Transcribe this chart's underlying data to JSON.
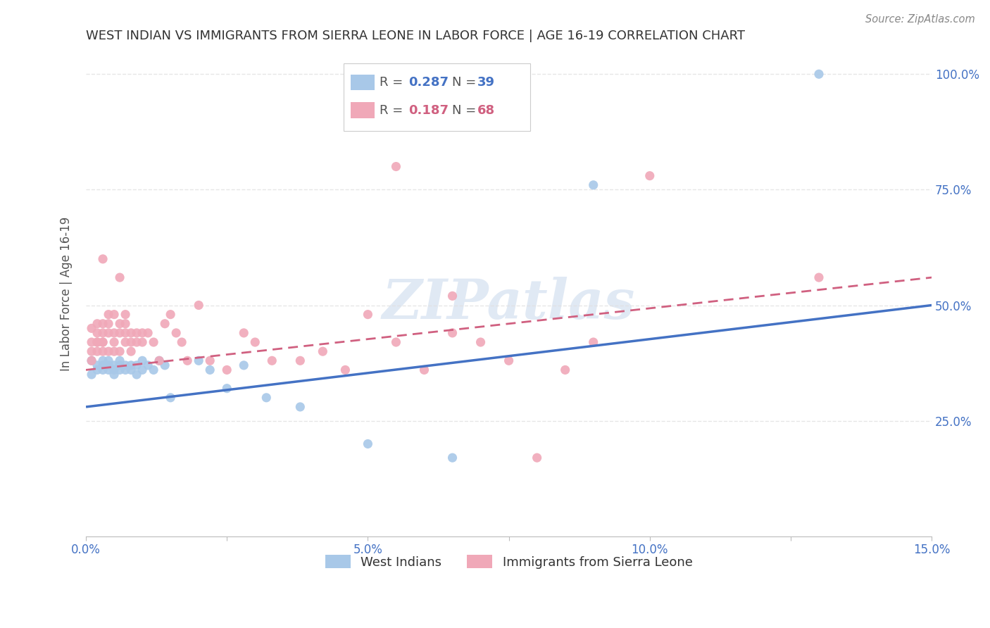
{
  "title": "WEST INDIAN VS IMMIGRANTS FROM SIERRA LEONE IN LABOR FORCE | AGE 16-19 CORRELATION CHART",
  "source": "Source: ZipAtlas.com",
  "ylabel": "In Labor Force | Age 16-19",
  "xlim": [
    0.0,
    0.15
  ],
  "ylim": [
    0.0,
    1.05
  ],
  "xtick_positions": [
    0.0,
    0.025,
    0.05,
    0.075,
    0.1,
    0.125,
    0.15
  ],
  "xtick_labels": [
    "0.0%",
    "",
    "5.0%",
    "",
    "10.0%",
    "",
    "15.0%"
  ],
  "ytick_positions": [
    0.0,
    0.25,
    0.5,
    0.75,
    1.0
  ],
  "grid_color": "#e0e0e0",
  "background_color": "#ffffff",
  "watermark": "ZIPatlas",
  "legend_R_blue": "0.287",
  "legend_N_blue": "39",
  "legend_R_pink": "0.187",
  "legend_N_pink": "68",
  "blue_color": "#a8c8e8",
  "pink_color": "#f0a8b8",
  "blue_line_color": "#4472c4",
  "pink_line_color": "#d06080",
  "axis_color": "#4472c4",
  "title_color": "#333333",
  "blue_x": [
    0.001,
    0.001,
    0.002,
    0.002,
    0.003,
    0.003,
    0.003,
    0.004,
    0.004,
    0.004,
    0.005,
    0.005,
    0.005,
    0.006,
    0.006,
    0.006,
    0.007,
    0.007,
    0.008,
    0.008,
    0.009,
    0.009,
    0.01,
    0.01,
    0.011,
    0.012,
    0.013,
    0.014,
    0.015,
    0.02,
    0.022,
    0.025,
    0.028,
    0.032,
    0.038,
    0.05,
    0.065,
    0.09,
    0.13
  ],
  "blue_y": [
    0.38,
    0.35,
    0.37,
    0.36,
    0.38,
    0.36,
    0.37,
    0.38,
    0.37,
    0.36,
    0.37,
    0.36,
    0.35,
    0.37,
    0.36,
    0.38,
    0.36,
    0.37,
    0.37,
    0.36,
    0.35,
    0.37,
    0.36,
    0.38,
    0.37,
    0.36,
    0.38,
    0.37,
    0.3,
    0.38,
    0.36,
    0.32,
    0.37,
    0.3,
    0.28,
    0.2,
    0.17,
    0.76,
    1.0
  ],
  "pink_x": [
    0.001,
    0.001,
    0.001,
    0.001,
    0.002,
    0.002,
    0.002,
    0.002,
    0.002,
    0.003,
    0.003,
    0.003,
    0.003,
    0.003,
    0.003,
    0.004,
    0.004,
    0.004,
    0.004,
    0.005,
    0.005,
    0.005,
    0.005,
    0.006,
    0.006,
    0.006,
    0.006,
    0.007,
    0.007,
    0.007,
    0.007,
    0.008,
    0.008,
    0.008,
    0.009,
    0.009,
    0.01,
    0.01,
    0.011,
    0.012,
    0.013,
    0.014,
    0.015,
    0.016,
    0.017,
    0.018,
    0.02,
    0.022,
    0.025,
    0.028,
    0.03,
    0.033,
    0.038,
    0.042,
    0.046,
    0.05,
    0.055,
    0.06,
    0.065,
    0.07,
    0.075,
    0.08,
    0.085,
    0.09,
    0.1,
    0.055,
    0.065,
    0.13
  ],
  "pink_y": [
    0.4,
    0.42,
    0.45,
    0.38,
    0.42,
    0.44,
    0.4,
    0.42,
    0.46,
    0.4,
    0.42,
    0.44,
    0.46,
    0.6,
    0.42,
    0.4,
    0.44,
    0.46,
    0.48,
    0.4,
    0.44,
    0.48,
    0.42,
    0.4,
    0.44,
    0.46,
    0.56,
    0.42,
    0.44,
    0.46,
    0.48,
    0.42,
    0.44,
    0.4,
    0.44,
    0.42,
    0.44,
    0.42,
    0.44,
    0.42,
    0.38,
    0.46,
    0.48,
    0.44,
    0.42,
    0.38,
    0.5,
    0.38,
    0.36,
    0.44,
    0.42,
    0.38,
    0.38,
    0.4,
    0.36,
    0.48,
    0.42,
    0.36,
    0.52,
    0.42,
    0.38,
    0.17,
    0.36,
    0.42,
    0.78,
    0.8,
    0.44,
    0.56
  ],
  "blue_line_y0": 0.28,
  "blue_line_y1": 0.5,
  "pink_line_y0": 0.36,
  "pink_line_y1": 0.56
}
